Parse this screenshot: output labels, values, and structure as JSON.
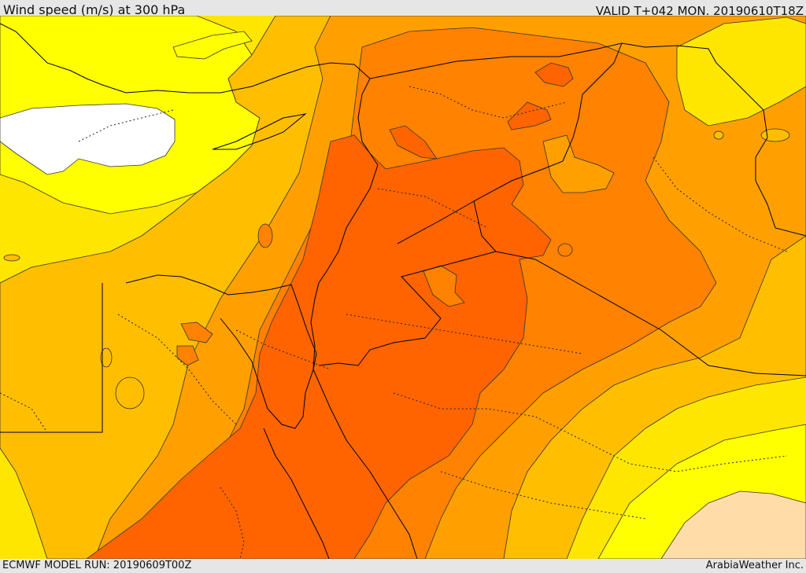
{
  "header": {
    "title": "Wind speed (m/s) at 300 hPa",
    "valid": "VALID T+042 MON. 20190610T18Z"
  },
  "footer": {
    "model_run": "ECMWF MODEL RUN: 20190609T00Z",
    "credit": "ArabiaWeather Inc."
  },
  "map": {
    "region": "Eastern Mediterranean and Middle East",
    "field": "Wind speed at 300 hPa (filled bands, no legend shown)",
    "band_colors": {
      "calm_white": "#ffffff",
      "light_peach": "#ffdca8",
      "yellow_1": "#ffff00",
      "yellow_2": "#ffe600",
      "yellow_orange": "#ffbe00",
      "orange_light": "#ffa000",
      "orange_mid": "#ff8200",
      "orange_dark": "#ff6400"
    },
    "contour_color": "#333333",
    "border_color": "#000000"
  }
}
